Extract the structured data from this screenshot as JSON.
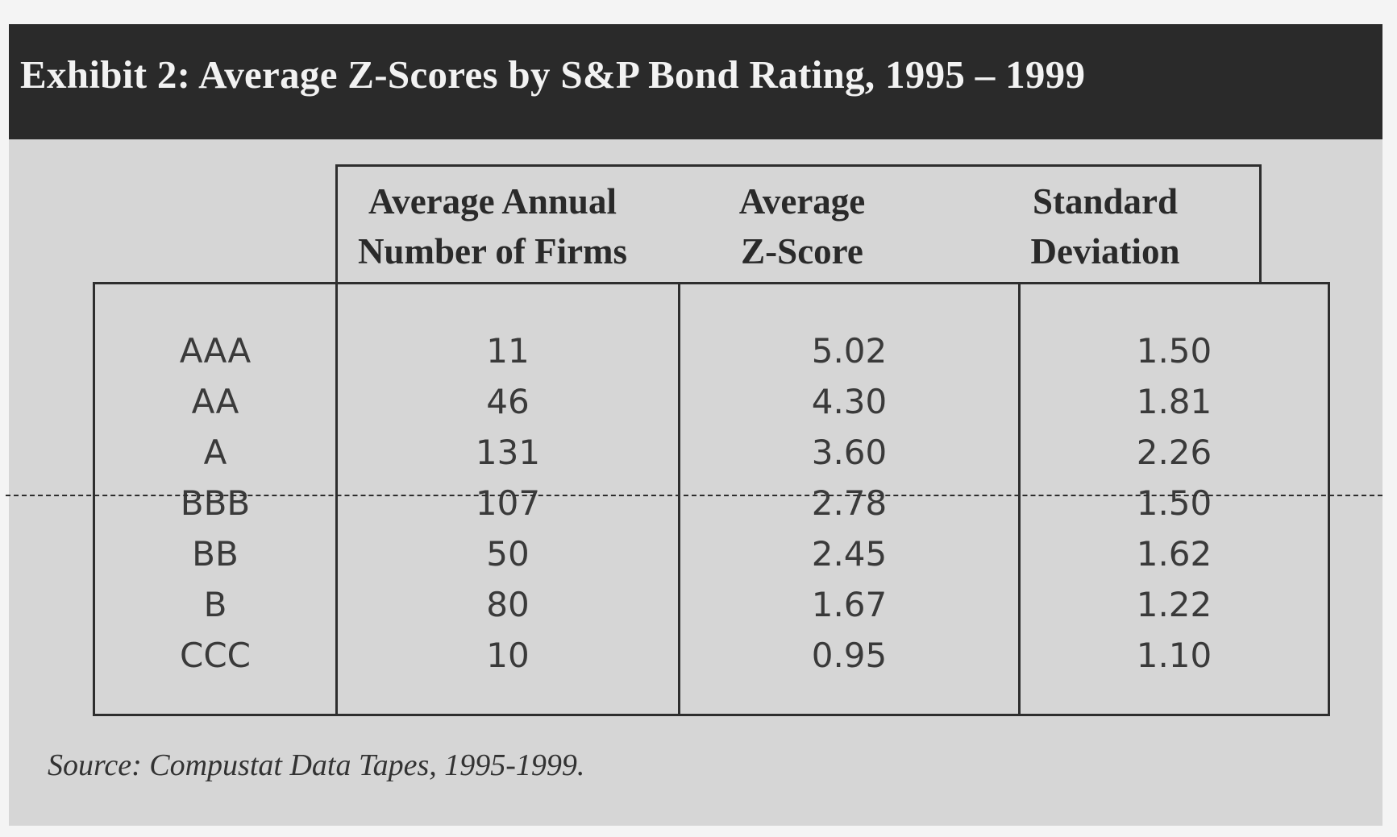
{
  "title": "Exhibit 2: Average Z-Scores by S&P Bond Rating, 1995 – 1999",
  "columns": [
    {
      "line1": "Average Annual",
      "line2": "Number of Firms"
    },
    {
      "line1": "Average",
      "line2": "Z-Score"
    },
    {
      "line1": "Standard",
      "line2": "Deviation"
    }
  ],
  "rows": [
    {
      "rating": "AAA",
      "firms": "11",
      "zscore": "5.02",
      "stdev": "1.50"
    },
    {
      "rating": "AA",
      "firms": "46",
      "zscore": "4.30",
      "stdev": "1.81"
    },
    {
      "rating": "A",
      "firms": "131",
      "zscore": "3.60",
      "stdev": "2.26"
    },
    {
      "rating": "BBB",
      "firms": "107",
      "zscore": "2.78",
      "stdev": "1.50"
    },
    {
      "rating": "BB",
      "firms": "50",
      "zscore": "2.45",
      "stdev": "1.62"
    },
    {
      "rating": "B",
      "firms": "80",
      "zscore": "1.67",
      "stdev": "1.22"
    },
    {
      "rating": "CCC",
      "firms": "10",
      "zscore": "0.95",
      "stdev": "1.10"
    }
  ],
  "source": "Source:  Compustat Data Tapes, 1995-1999."
}
